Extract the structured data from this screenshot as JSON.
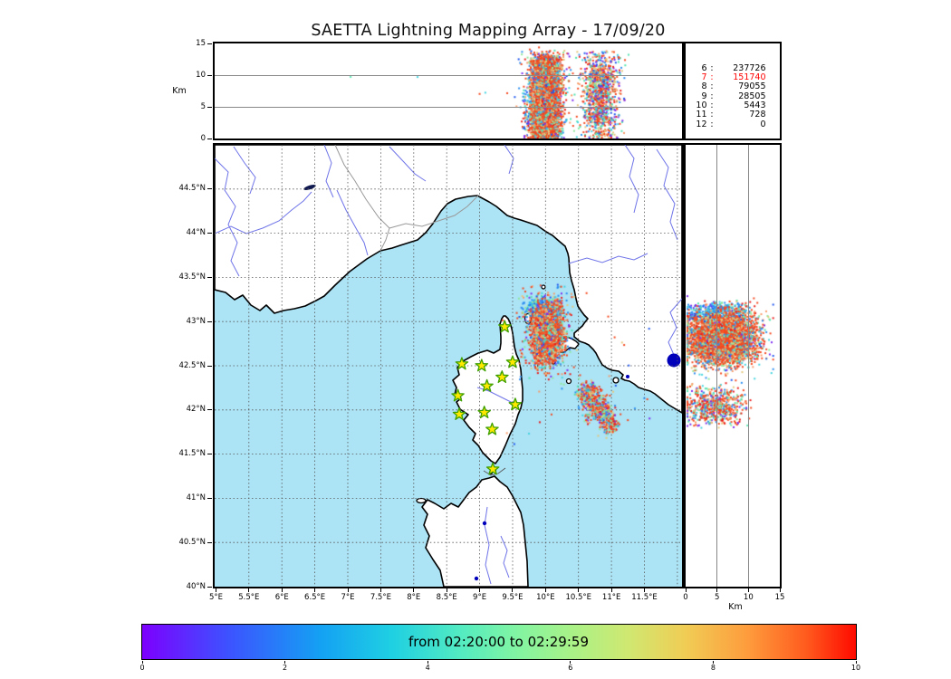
{
  "title": "SAETTA Lightning Mapping Array - 17/09/20",
  "chart_data": {
    "type": "scatter",
    "title": "SAETTA Lightning Mapping Array - 17/09/20",
    "panels": {
      "alt_lon": {
        "desc": "altitude vs longitude cross-section",
        "ylabel": "Km",
        "ylim": [
          0,
          15
        ],
        "yticks": [
          0,
          5,
          10,
          15
        ],
        "grid_y": [
          5,
          10
        ],
        "xlim": [
          4.98,
          12.07
        ]
      },
      "map": {
        "desc": "plan view map",
        "xlim": [
          4.98,
          12.07
        ],
        "ylim": [
          40,
          45
        ],
        "lon_ticks": [
          5,
          5.5,
          6,
          6.5,
          7,
          7.5,
          8,
          8.5,
          9,
          9.5,
          10,
          10.5,
          11,
          11.5
        ],
        "lon_labels": [
          "5°E",
          "5.5°E",
          "6°E",
          "6.5°E",
          "7°E",
          "7.5°E",
          "8°E",
          "8.5°E",
          "9°E",
          "9.5°E",
          "10°E",
          "10.5°E",
          "11°E",
          "11.5°E"
        ],
        "lat_ticks": [
          40,
          40.5,
          41,
          41.5,
          42,
          42.5,
          43,
          43.5,
          44,
          44.5
        ],
        "lat_labels": [
          "40°N",
          "40.5°N",
          "41°N",
          "41.5°N",
          "42°N",
          "42.5°N",
          "43°N",
          "43.5°N",
          "44°N",
          "44.5°N"
        ],
        "grid_lon": [
          5.5,
          6,
          6.5,
          7,
          7.5,
          8,
          8.5,
          9,
          9.5,
          10,
          10.5,
          11,
          11.5,
          12
        ],
        "grid_lat": [
          40.5,
          41,
          41.5,
          42,
          42.5,
          43,
          43.5,
          44,
          44.5
        ]
      },
      "alt_lat": {
        "desc": "altitude vs latitude cross-section",
        "xlabel": "Km",
        "xlim": [
          0,
          15
        ],
        "xticks": [
          0,
          5,
          10,
          15
        ],
        "grid_x": [
          5,
          10
        ],
        "ylim": [
          40,
          45
        ]
      }
    },
    "stats_box": {
      "rows": [
        {
          "n": "6",
          "count": "237726"
        },
        {
          "n": "7",
          "count": "151740",
          "color": "#ff0000"
        },
        {
          "n": "8",
          "count": "79055"
        },
        {
          "n": "9",
          "count": "28505"
        },
        {
          "n": "10",
          "count": "5443"
        },
        {
          "n": "11",
          "count": "728"
        },
        {
          "n": "12",
          "count": "0"
        }
      ]
    },
    "colorbar": {
      "label": "from 02:20:00 to 02:29:59",
      "range": [
        0,
        10
      ],
      "ticks": [
        "0",
        "2",
        "4",
        "6",
        "8",
        "10"
      ],
      "gradient_stops": [
        [
          0,
          "#7d00fe"
        ],
        [
          12,
          "#3d52ff"
        ],
        [
          25,
          "#14a1f3"
        ],
        [
          35,
          "#1fd0e2"
        ],
        [
          45,
          "#55ecc0"
        ],
        [
          52,
          "#7ff4a4"
        ],
        [
          60,
          "#a8f288"
        ],
        [
          68,
          "#cfe871"
        ],
        [
          76,
          "#f0cd55"
        ],
        [
          85,
          "#fe9b3c"
        ],
        [
          93,
          "#ff5b1e"
        ],
        [
          100,
          "#ff0a00"
        ]
      ]
    },
    "stations_lonlat": [
      [
        9.38,
        42.94
      ],
      [
        8.73,
        42.52
      ],
      [
        9.03,
        42.5
      ],
      [
        9.5,
        42.54
      ],
      [
        9.34,
        42.37
      ],
      [
        9.11,
        42.27
      ],
      [
        8.67,
        42.16
      ],
      [
        9.54,
        42.06
      ],
      [
        8.69,
        41.95
      ],
      [
        9.07,
        41.97
      ],
      [
        9.19,
        41.78
      ],
      [
        9.2,
        41.33
      ]
    ],
    "palettes": {
      "core": [
        "#f4481e",
        "#f4481e",
        "#f4481e",
        "#f4481e",
        "#f4481e",
        "#f4481e",
        "#f55a25",
        "#f79b68",
        "#9ce89a",
        "#e4c77e",
        "#45d4e0",
        "#2b8ef0"
      ],
      "speckle": [
        "#f4481e",
        "#f4481e",
        "#45d4e0",
        "#8fe89a",
        "#2b8ef0",
        "#e4c77e",
        "#ea1c1c",
        "#7d2bf0",
        "#f79b68",
        "#52e3ae",
        "#1e56ee",
        "#f4481e"
      ],
      "cap": [
        "#2b8ef0",
        "#2b8ef0",
        "#2b8ef0",
        "#2b8ef0",
        "#38b8f0",
        "#45d4e0",
        "#8fe89a",
        "#52e3ae",
        "#7d2bf0",
        "#1e56ee"
      ],
      "storm2": [
        "#f4481e",
        "#f4481e",
        "#f4481e",
        "#f4481e",
        "#ea1c1c",
        "#45d4e0",
        "#8fe89a",
        "#2b8ef0",
        "#e3c87c",
        "#7d2bf0",
        "#f79b68",
        "#52e3ae"
      ]
    },
    "clusters": {
      "map": [
        {
          "type": "gauss",
          "n": 450,
          "cx": 9.95,
          "cy": 43.16,
          "sx": 0.13,
          "sy": 0.055,
          "palette": "cap"
        },
        {
          "type": "gauss",
          "n": 650,
          "cx": 10.0,
          "cy": 42.87,
          "sx": 0.17,
          "sy": 0.23,
          "palette": "speckle"
        },
        {
          "type": "gauss",
          "n": 2600,
          "cx": 10.02,
          "cy": 42.88,
          "sx": 0.105,
          "sy": 0.15,
          "palette": "core"
        },
        {
          "type": "gauss",
          "n": 150,
          "cx": 10.02,
          "cy": 42.88,
          "sx": 0.13,
          "sy": 0.18,
          "palette": "speckle"
        },
        {
          "type": "gauss",
          "n": 260,
          "cx": 10.62,
          "cy": 42.18,
          "sx": 0.085,
          "sy": 0.07,
          "palette": "storm2"
        },
        {
          "type": "gauss",
          "n": 340,
          "cx": 10.8,
          "cy": 42.02,
          "sx": 0.1,
          "sy": 0.085,
          "palette": "storm2"
        },
        {
          "type": "gauss",
          "n": 170,
          "cx": 10.95,
          "cy": 41.86,
          "sx": 0.07,
          "sy": 0.06,
          "palette": "storm2"
        },
        {
          "type": "uniform",
          "n": 40,
          "x0": 9.3,
          "x1": 11.6,
          "y0": 41.6,
          "y1": 43.4,
          "palette": "speckle"
        }
      ],
      "alt_lon": [
        {
          "type": "column",
          "n": 300,
          "cx": 9.93,
          "sx": 0.12,
          "a0": 2.0,
          "a1": 9.0,
          "palette": "cap"
        },
        {
          "type": "column",
          "n": 900,
          "cx": 9.99,
          "sx": 0.16,
          "a0": 0.0,
          "a1": 13.8,
          "palette": "speckle"
        },
        {
          "type": "column",
          "n": 3400,
          "cx": 9.99,
          "sx": 0.105,
          "a0": 0.4,
          "a1": 12.6,
          "palette": "core"
        },
        {
          "type": "column",
          "n": 180,
          "cx": 9.99,
          "sx": 0.13,
          "a0": 0.2,
          "a1": 13.2,
          "palette": "speckle"
        },
        {
          "type": "column",
          "n": 520,
          "cx": 10.82,
          "sx": 0.11,
          "a0": 2.5,
          "a1": 11.5,
          "palette": "storm2"
        },
        {
          "type": "column",
          "n": 650,
          "cx": 10.82,
          "sx": 0.16,
          "a0": 0.0,
          "a1": 13.5,
          "palette": "speckle"
        },
        {
          "type": "column",
          "n": 6,
          "cx": 8.3,
          "sx": 0.9,
          "a0": 7.0,
          "a1": 11.0,
          "palette": "speckle"
        }
      ],
      "alt_lat": [
        {
          "type": "gauss",
          "n": 380,
          "cx": 4.8,
          "cy": 43.12,
          "sx": 2.2,
          "sy": 0.05,
          "palette": "cap"
        },
        {
          "type": "gauss",
          "n": 800,
          "cx": 5.8,
          "cy": 42.82,
          "sx": 3.4,
          "sy": 0.19,
          "palette": "speckle"
        },
        {
          "type": "gauss",
          "n": 3400,
          "cx": 5.6,
          "cy": 42.82,
          "sx": 2.6,
          "sy": 0.135,
          "palette": "core"
        },
        {
          "type": "gauss",
          "n": 180,
          "cx": 5.6,
          "cy": 42.82,
          "sx": 3.0,
          "sy": 0.16,
          "palette": "speckle"
        },
        {
          "type": "gauss",
          "n": 650,
          "cx": 4.5,
          "cy": 42.05,
          "sx": 2.4,
          "sy": 0.11,
          "palette": "storm2"
        }
      ]
    },
    "colors": {
      "sea": "#ace3f5",
      "land": "#ffffff",
      "coast": "#000000",
      "river": "#6f74e8",
      "border": "#999999",
      "lake": "#0000bb",
      "grid": "#555555",
      "star_fill": "#ffe800",
      "star_stroke": "#3fa000",
      "stat_highlight": "#ff0000"
    }
  }
}
